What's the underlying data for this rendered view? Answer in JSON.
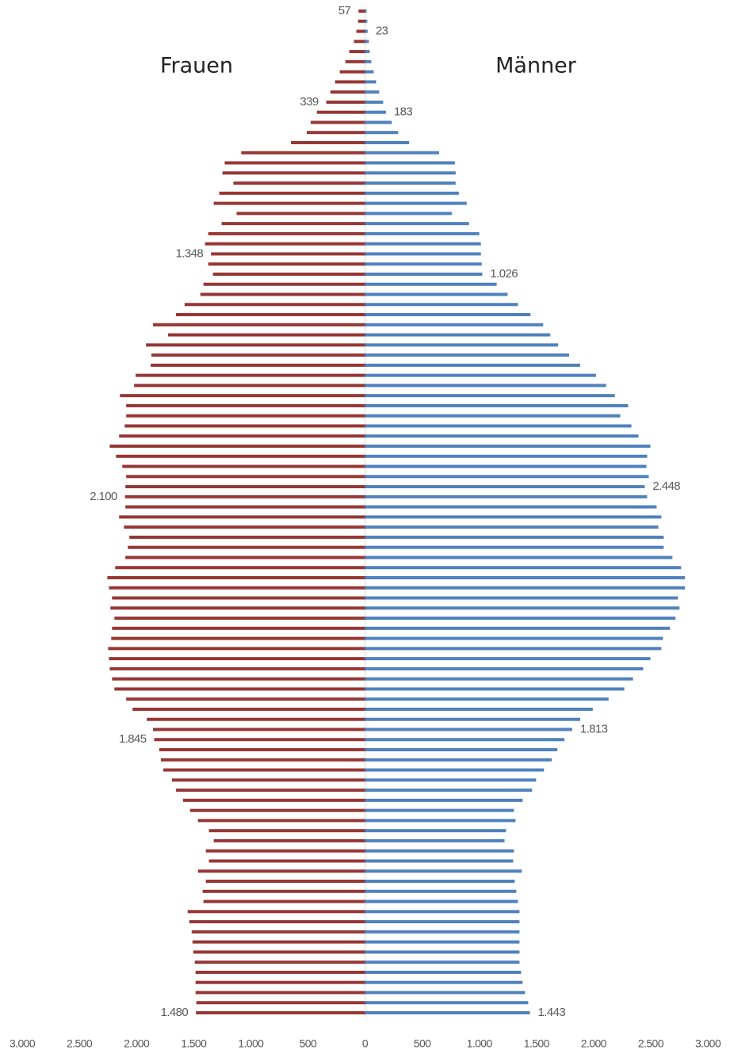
{
  "chart_data": {
    "type": "pyramid",
    "categories": [
      null,
      null,
      null,
      null,
      null,
      null,
      null,
      null,
      null,
      null,
      null,
      null,
      null,
      null,
      null,
      null,
      null,
      null,
      null,
      null,
      null,
      null,
      null,
      null,
      null,
      null,
      null,
      null,
      null,
      null,
      null,
      null,
      null,
      null,
      null,
      null,
      null,
      null,
      null,
      null,
      null,
      null,
      null,
      null,
      null,
      null,
      null,
      null,
      null,
      null,
      null,
      null,
      null,
      null,
      null,
      null,
      null,
      null,
      null,
      null,
      null,
      null,
      null,
      null,
      null,
      null,
      null,
      null,
      null,
      null,
      null,
      null,
      null,
      null,
      null,
      null,
      null,
      null,
      null,
      null,
      null,
      null,
      null,
      null,
      null,
      null,
      null,
      null,
      null,
      null,
      null,
      null,
      null,
      null,
      null,
      null,
      null,
      null,
      null,
      null
    ],
    "series": [
      {
        "name": "Frauen",
        "color": "#953735",
        "side": "left",
        "values": [
          57,
          60,
          76,
          97,
          138,
          172,
          221,
          262,
          303,
          339,
          421,
          476,
          510,
          648,
          1083,
          1228,
          1248,
          1152,
          1276,
          1324,
          1124,
          1255,
          1372,
          1400,
          1348,
          1372,
          1331,
          1414,
          1441,
          1579,
          1655,
          1855,
          1724,
          1917,
          1869,
          1876,
          2007,
          2021,
          2145,
          2090,
          2090,
          2103,
          2152,
          2234,
          2179,
          2124,
          2090,
          2097,
          2100,
          2097,
          2152,
          2110,
          2062,
          2076,
          2097,
          2186,
          2255,
          2241,
          2214,
          2228,
          2193,
          2214,
          2221,
          2248,
          2241,
          2234,
          2214,
          2193,
          2090,
          2034,
          1910,
          1855,
          1845,
          1800,
          1786,
          1766,
          1690,
          1655,
          1593,
          1531,
          1462,
          1366,
          1324,
          1393,
          1366,
          1462,
          1393,
          1421,
          1414,
          1552,
          1538,
          1517,
          1510,
          1503,
          1490,
          1483,
          1483,
          1483,
          1476,
          1480
        ],
        "value_labels": [
          "57",
          null,
          null,
          null,
          null,
          null,
          null,
          null,
          null,
          "339",
          null,
          null,
          null,
          null,
          null,
          null,
          null,
          null,
          null,
          null,
          null,
          null,
          null,
          null,
          "1.348",
          null,
          null,
          null,
          null,
          null,
          null,
          null,
          null,
          null,
          null,
          null,
          null,
          null,
          null,
          null,
          null,
          null,
          null,
          null,
          null,
          null,
          null,
          null,
          "2.100",
          null,
          null,
          null,
          null,
          null,
          null,
          null,
          null,
          null,
          null,
          null,
          null,
          null,
          null,
          null,
          null,
          null,
          null,
          null,
          null,
          null,
          null,
          null,
          "1.845",
          null,
          null,
          null,
          null,
          null,
          null,
          null,
          null,
          null,
          null,
          null,
          null,
          null,
          null,
          null,
          null,
          null,
          null,
          null,
          null,
          null,
          null,
          null,
          null,
          null,
          null,
          "1.480"
        ]
      },
      {
        "name": "Männer",
        "color": "#4f81bd",
        "side": "right",
        "values": [
          14,
          20,
          23,
          34,
          41,
          55,
          76,
          97,
          124,
          159,
          183,
          234,
          290,
          386,
          648,
          786,
          793,
          793,
          821,
          890,
          759,
          910,
          1000,
          1014,
          1014,
          1021,
          1026,
          1152,
          1248,
          1338,
          1448,
          1559,
          1621,
          1690,
          1786,
          1883,
          2021,
          2110,
          2186,
          2303,
          2234,
          2331,
          2393,
          2497,
          2469,
          2462,
          2483,
          2448,
          2469,
          2552,
          2593,
          2566,
          2614,
          2614,
          2690,
          2766,
          2800,
          2800,
          2738,
          2752,
          2717,
          2669,
          2607,
          2593,
          2497,
          2434,
          2345,
          2269,
          2131,
          1993,
          1883,
          1813,
          1745,
          1683,
          1634,
          1566,
          1497,
          1462,
          1379,
          1303,
          1317,
          1234,
          1221,
          1303,
          1297,
          1372,
          1310,
          1324,
          1338,
          1352,
          1352,
          1352,
          1352,
          1352,
          1352,
          1366,
          1379,
          1400,
          1428,
          1443
        ],
        "value_labels": [
          null,
          null,
          "23",
          null,
          null,
          null,
          null,
          null,
          null,
          null,
          "183",
          null,
          null,
          null,
          null,
          null,
          null,
          null,
          null,
          null,
          null,
          null,
          null,
          null,
          null,
          null,
          "1.026",
          null,
          null,
          null,
          null,
          null,
          null,
          null,
          null,
          null,
          null,
          null,
          null,
          null,
          null,
          null,
          null,
          null,
          null,
          null,
          null,
          "2.448",
          null,
          null,
          null,
          null,
          null,
          null,
          null,
          null,
          null,
          null,
          null,
          null,
          null,
          null,
          null,
          null,
          null,
          null,
          null,
          null,
          null,
          null,
          null,
          "1.813",
          null,
          null,
          null,
          null,
          null,
          null,
          null,
          null,
          null,
          null,
          null,
          null,
          null,
          null,
          null,
          null,
          null,
          null,
          null,
          null,
          null,
          null,
          null,
          null,
          null,
          null,
          null,
          "1.443"
        ]
      }
    ],
    "xlim": [
      -3000,
      3000
    ],
    "xticks": [
      {
        "value": -3000,
        "label": "3.000"
      },
      {
        "value": -2500,
        "label": "2.500"
      },
      {
        "value": -2000,
        "label": "2.000"
      },
      {
        "value": -1500,
        "label": "1.500"
      },
      {
        "value": -1000,
        "label": "1.000"
      },
      {
        "value": -500,
        "label": "500"
      },
      0,
      500,
      {
        "value": 1000,
        "label": "1.000"
      },
      {
        "value": 1500,
        "label": "1.500"
      },
      {
        "value": 2000,
        "label": "2.000"
      },
      {
        "value": 2500,
        "label": "2.500"
      },
      {
        "value": 3000,
        "label": "3.000"
      }
    ],
    "grid": false
  }
}
